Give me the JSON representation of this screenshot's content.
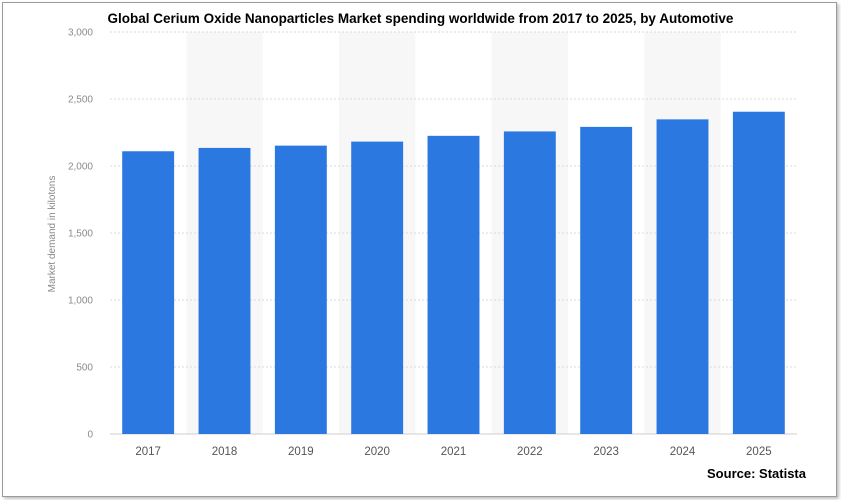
{
  "chart_data": {
    "type": "bar",
    "title": "Global Cerium Oxide Nanoparticles Market spending worldwide from 2017 to 2025, by Automotive",
    "xlabel": "",
    "ylabel": "Market demand in kilotons",
    "categories": [
      "2017",
      "2018",
      "2019",
      "2020",
      "2021",
      "2022",
      "2023",
      "2024",
      "2025"
    ],
    "values": [
      2110,
      2135,
      2152,
      2182,
      2225,
      2258,
      2292,
      2348,
      2405
    ],
    "ylim": [
      0,
      3000
    ],
    "yticks": [
      0,
      500,
      1000,
      1500,
      2000,
      2500,
      3000
    ],
    "ytick_labels": [
      "0",
      "500",
      "1,000",
      "1,500",
      "2,000",
      "2,500",
      "3,000"
    ],
    "grid": true,
    "bar_color": "#2a78e0",
    "band_color": "#f7f7f7",
    "source": "Source: Statista"
  }
}
